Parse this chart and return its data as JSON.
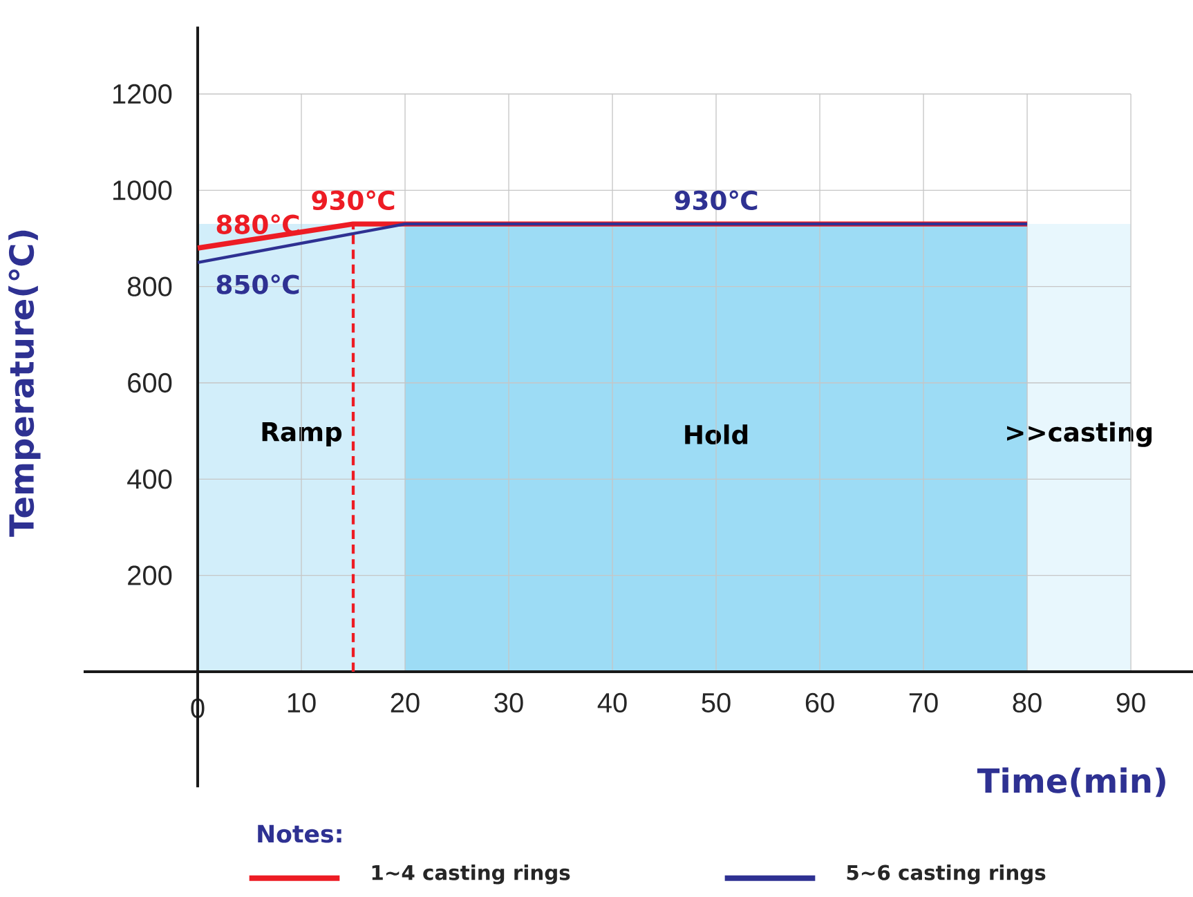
{
  "chart_data": {
    "type": "line",
    "xlabel": "Time(min)",
    "ylabel": "Temperature(℃)",
    "legend_title": "Notes:",
    "xlim": [
      -11,
      96
    ],
    "ylim": [
      -240,
      1340
    ],
    "xticks": [
      0,
      10,
      20,
      30,
      40,
      50,
      60,
      70,
      80,
      90
    ],
    "yticks": [
      200,
      400,
      600,
      800,
      1000,
      1200
    ],
    "grid": true,
    "legend": "bottom",
    "series": [
      {
        "name": "1~4 casting rings",
        "color": "#ed1c24",
        "x": [
          0,
          15,
          80
        ],
        "values": [
          880,
          930,
          930
        ]
      },
      {
        "name": "5~6 casting rings",
        "color": "#2e3192",
        "x": [
          0,
          20,
          50,
          80
        ],
        "values": [
          850,
          930,
          930,
          930
        ]
      }
    ],
    "ref_lines": [
      {
        "axis": "x",
        "value": 15,
        "color": "#ed1c24",
        "line_style": "dashed"
      }
    ],
    "bands": [
      {
        "axis": "x",
        "from": 0,
        "to": 20,
        "label": "Ramp",
        "color": "#d2eefa"
      },
      {
        "axis": "x",
        "from": 20,
        "to": 80,
        "label": "Hold",
        "color": "#9ddcf5"
      },
      {
        "axis": "x",
        "from": 80,
        "to": 90,
        "label": ">>casting",
        "color": "#e8f7fd"
      }
    ],
    "annotations": [
      {
        "text": "880℃",
        "x": 0,
        "y": 880
      },
      {
        "text": "930℃",
        "x": 15,
        "y": 930
      },
      {
        "text": "850℃",
        "x": 0,
        "y": 850
      },
      {
        "text": "930℃",
        "x": 50,
        "y": 930
      }
    ]
  }
}
